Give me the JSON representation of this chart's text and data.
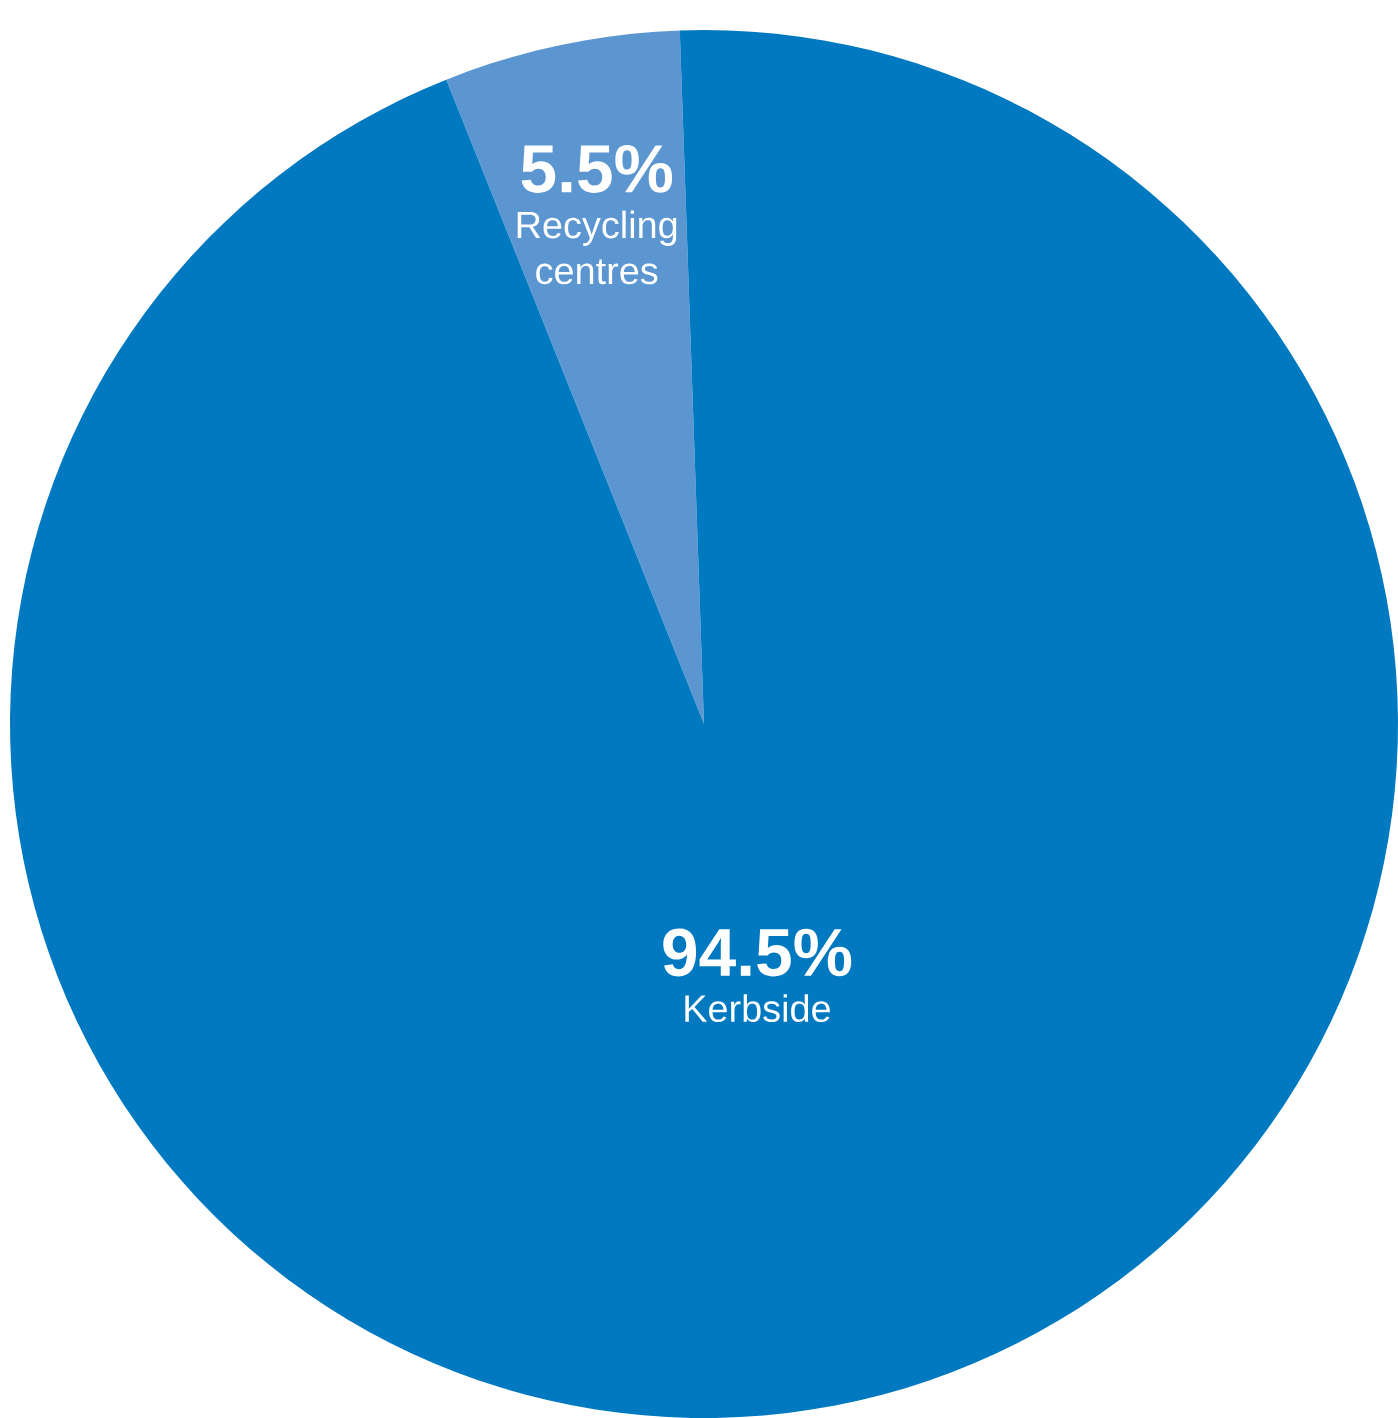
{
  "chart_data": {
    "type": "pie",
    "categories": [
      "Kerbside",
      "Recycling centres"
    ],
    "values": [
      94.5,
      5.5
    ],
    "colors": [
      "#0079c1",
      "#5b96d0"
    ],
    "value_labels": [
      "94.5%",
      "5.5%"
    ]
  }
}
